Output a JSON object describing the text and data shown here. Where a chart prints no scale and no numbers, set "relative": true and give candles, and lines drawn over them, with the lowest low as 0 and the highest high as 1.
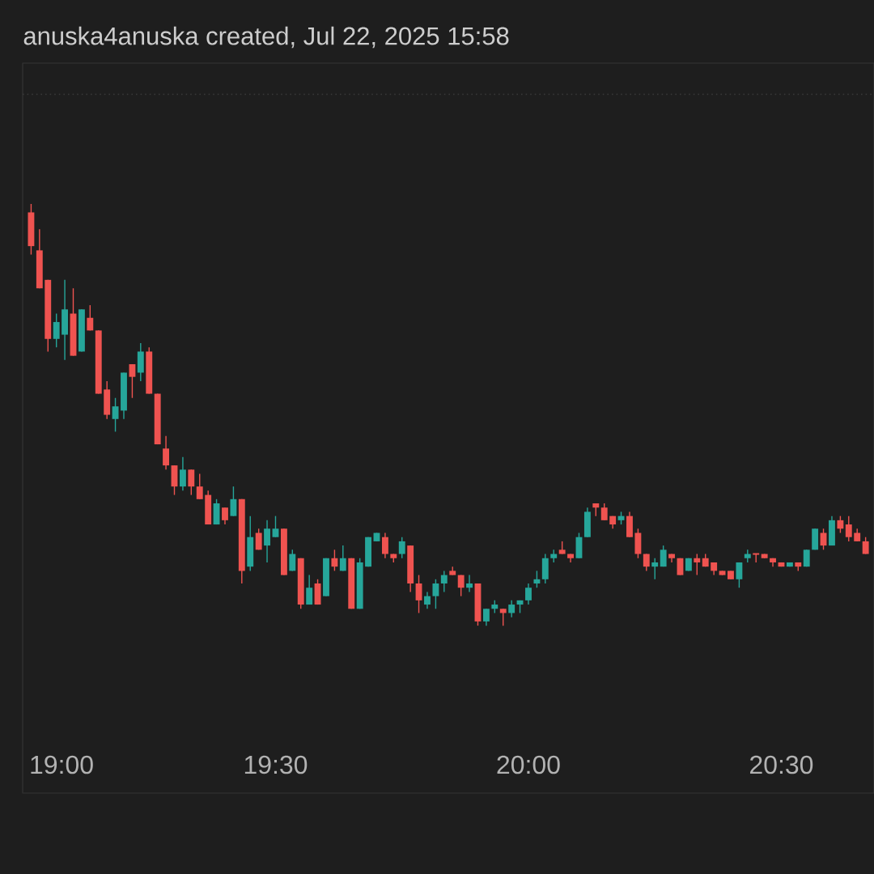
{
  "chart_data": {
    "type": "candlestick",
    "title": "anuska4anuska created, Jul 22, 2025 15:58",
    "relative": true,
    "x": [
      19.0167,
      19.0333,
      19.05,
      19.0667,
      19.0833,
      19.1,
      19.1167,
      19.1333,
      19.15,
      19.1667,
      19.1833,
      19.2,
      19.2167,
      19.2333,
      19.25,
      19.2667,
      19.2833,
      19.3,
      19.3167,
      19.3333,
      19.35,
      19.3667,
      19.3833,
      19.4,
      19.4167,
      19.4333,
      19.45,
      19.4667,
      19.4833,
      19.5,
      19.5167,
      19.5333,
      19.55,
      19.5667,
      19.5833,
      19.6,
      19.6167,
      19.6333,
      19.65,
      19.6667,
      19.6833,
      19.7,
      19.7167,
      19.7333,
      19.75,
      19.7667,
      19.7833,
      19.8,
      19.8167,
      19.8333,
      19.85,
      19.8667,
      19.8833,
      19.9,
      19.9167,
      19.9333,
      19.95,
      19.9667,
      19.9833,
      20.0,
      20.0167,
      20.0333,
      20.05,
      20.0667,
      20.0833,
      20.1,
      20.1167,
      20.1333,
      20.15,
      20.1667,
      20.1833,
      20.2,
      20.2167,
      20.2333,
      20.25,
      20.2667,
      20.2833,
      20.3,
      20.3167,
      20.3333,
      20.35,
      20.3667,
      20.3833,
      20.4,
      20.4167,
      20.4333,
      20.45,
      20.4667,
      20.4833,
      20.5,
      20.5167,
      20.5333,
      20.55,
      20.5667,
      20.5833,
      20.6,
      20.6167,
      20.6333,
      20.65,
      20.6667
    ],
    "ohlc": [
      [
        0.98,
        1,
        0.88,
        0.9
      ],
      [
        0.89,
        0.94,
        0.8,
        0.8
      ],
      [
        0.82,
        0.82,
        0.65,
        0.68
      ],
      [
        0.68,
        0.74,
        0.66,
        0.72
      ],
      [
        0.69,
        0.82,
        0.63,
        0.75
      ],
      [
        0.74,
        0.8,
        0.64,
        0.64
      ],
      [
        0.65,
        0.75,
        0.65,
        0.75
      ],
      [
        0.73,
        0.76,
        0.7,
        0.7
      ],
      [
        0.7,
        0.7,
        0.55,
        0.55
      ],
      [
        0.56,
        0.58,
        0.49,
        0.5
      ],
      [
        0.49,
        0.54,
        0.46,
        0.52
      ],
      [
        0.51,
        0.6,
        0.49,
        0.6
      ],
      [
        0.62,
        0.62,
        0.54,
        0.59
      ],
      [
        0.6,
        0.67,
        0.58,
        0.65
      ],
      [
        0.65,
        0.66,
        0.55,
        0.55
      ],
      [
        0.55,
        0.55,
        0.43,
        0.43
      ],
      [
        0.42,
        0.45,
        0.37,
        0.38
      ],
      [
        0.38,
        0.38,
        0.31,
        0.33
      ],
      [
        0.33,
        0.4,
        0.32,
        0.37
      ],
      [
        0.37,
        0.37,
        0.31,
        0.33
      ],
      [
        0.33,
        0.36,
        0.3,
        0.3
      ],
      [
        0.31,
        0.32,
        0.24,
        0.24
      ],
      [
        0.24,
        0.3,
        0.24,
        0.29
      ],
      [
        0.28,
        0.28,
        0.24,
        0.25
      ],
      [
        0.26,
        0.33,
        0.26,
        0.3
      ],
      [
        0.3,
        0.3,
        0.1,
        0.13
      ],
      [
        0.14,
        0.26,
        0.13,
        0.21
      ],
      [
        0.22,
        0.23,
        0.18,
        0.18
      ],
      [
        0.19,
        0.25,
        0.15,
        0.23
      ],
      [
        0.21,
        0.26,
        0.21,
        0.23
      ],
      [
        0.23,
        0.23,
        0.12,
        0.12
      ],
      [
        0.13,
        0.18,
        0.13,
        0.17
      ],
      [
        0.16,
        0.16,
        0.04,
        0.05
      ],
      [
        0.05,
        0.12,
        0.05,
        0.09
      ],
      [
        0.1,
        0.11,
        0.05,
        0.05
      ],
      [
        0.07,
        0.16,
        0.07,
        0.16
      ],
      [
        0.16,
        0.18,
        0.13,
        0.14
      ],
      [
        0.13,
        0.19,
        0.13,
        0.16
      ],
      [
        0.16,
        0.16,
        0.04,
        0.04
      ],
      [
        0.04,
        0.16,
        0.04,
        0.15
      ],
      [
        0.14,
        0.21,
        0.14,
        0.21
      ],
      [
        0.2,
        0.22,
        0.2,
        0.22
      ],
      [
        0.21,
        0.22,
        0.16,
        0.17
      ],
      [
        0.17,
        0.17,
        0.15,
        0.16
      ],
      [
        0.17,
        0.21,
        0.16,
        0.2
      ],
      [
        0.19,
        0.19,
        0.08,
        0.1
      ],
      [
        0.1,
        0.12,
        0.03,
        0.06
      ],
      [
        0.05,
        0.08,
        0.04,
        0.07
      ],
      [
        0.07,
        0.11,
        0.04,
        0.1
      ],
      [
        0.1,
        0.13,
        0.08,
        0.12
      ],
      [
        0.13,
        0.14,
        0.12,
        0.12
      ],
      [
        0.12,
        0.12,
        0.07,
        0.09
      ],
      [
        0.09,
        0.12,
        0.08,
        0.1
      ],
      [
        0.1,
        0.1,
        0.0,
        0.01
      ],
      [
        0.01,
        0.04,
        0.0,
        0.04
      ],
      [
        0.04,
        0.06,
        0.03,
        0.05
      ],
      [
        0.04,
        0.04,
        0,
        0.03
      ],
      [
        0.03,
        0.06,
        0.02,
        0.05
      ],
      [
        0.05,
        0.06,
        0.03,
        0.06
      ],
      [
        0.06,
        0.1,
        0.05,
        0.09
      ],
      [
        0.1,
        0.13,
        0.09,
        0.11
      ],
      [
        0.11,
        0.17,
        0.1,
        0.16
      ],
      [
        0.16,
        0.18,
        0.15,
        0.17
      ],
      [
        0.18,
        0.2,
        0.17,
        0.17
      ],
      [
        0.17,
        0.17,
        0.15,
        0.16
      ],
      [
        0.16,
        0.22,
        0.16,
        0.21
      ],
      [
        0.21,
        0.28,
        0.21,
        0.27
      ],
      [
        0.29,
        0.29,
        0.26,
        0.28
      ],
      [
        0.28,
        0.29,
        0.25,
        0.25
      ],
      [
        0.26,
        0.26,
        0.23,
        0.24
      ],
      [
        0.25,
        0.27,
        0.24,
        0.26
      ],
      [
        0.26,
        0.27,
        0.21,
        0.21
      ],
      [
        0.22,
        0.23,
        0.16,
        0.17
      ],
      [
        0.17,
        0.17,
        0.13,
        0.14
      ],
      [
        0.14,
        0.16,
        0.11,
        0.15
      ],
      [
        0.14,
        0.19,
        0.14,
        0.18
      ],
      [
        0.17,
        0.17,
        0.15,
        0.16
      ],
      [
        0.16,
        0.16,
        0.12,
        0.12
      ],
      [
        0.13,
        0.16,
        0.13,
        0.16
      ],
      [
        0.16,
        0.17,
        0.12,
        0.15
      ],
      [
        0.16,
        0.17,
        0.14,
        0.14
      ],
      [
        0.15,
        0.15,
        0.12,
        0.13
      ],
      [
        0.13,
        0.13,
        0.12,
        0.12
      ],
      [
        0.13,
        0.13,
        0.11,
        0.11
      ],
      [
        0.11,
        0.15,
        0.09,
        0.15
      ],
      [
        0.16,
        0.18,
        0.15,
        0.17
      ],
      [
        0.17,
        0.17,
        0.15,
        0.17
      ],
      [
        0.17,
        0.17,
        0.16,
        0.16
      ],
      [
        0.16,
        0.16,
        0.14,
        0.15
      ],
      [
        0.15,
        0.15,
        0.14,
        0.14
      ],
      [
        0.14,
        0.15,
        0.14,
        0.15
      ],
      [
        0.15,
        0.15,
        0.13,
        0.14
      ],
      [
        0.14,
        0.18,
        0.14,
        0.18
      ],
      [
        0.18,
        0.23,
        0.18,
        0.23
      ],
      [
        0.22,
        0.23,
        0.18,
        0.19
      ],
      [
        0.19,
        0.26,
        0.19,
        0.25
      ],
      [
        0.25,
        0.26,
        0.22,
        0.23
      ],
      [
        0.24,
        0.26,
        0.2,
        0.21
      ],
      [
        0.22,
        0.23,
        0.2,
        0.2
      ],
      [
        0.2,
        0.21,
        0.17,
        0.17
      ]
    ],
    "colors": [
      "#ef5350",
      "#ef5350",
      "#ef5350",
      "#26a69a",
      "#26a69a",
      "#ef5350",
      "#26a69a",
      "#ef5350",
      "#ef5350",
      "#ef5350",
      "#26a69a",
      "#26a69a",
      "#ef5350",
      "#26a69a",
      "#ef5350",
      "#ef5350",
      "#ef5350",
      "#ef5350",
      "#26a69a",
      "#ef5350",
      "#ef5350",
      "#ef5350",
      "#26a69a",
      "#ef5350",
      "#26a69a",
      "#ef5350",
      "#26a69a",
      "#ef5350",
      "#26a69a",
      "#26a69a",
      "#ef5350",
      "#26a69a",
      "#ef5350",
      "#26a69a",
      "#ef5350",
      "#26a69a",
      "#ef5350",
      "#26a69a",
      "#ef5350",
      "#26a69a",
      "#26a69a",
      "#26a69a",
      "#ef5350",
      "#ef5350",
      "#26a69a",
      "#ef5350",
      "#ef5350",
      "#26a69a",
      "#26a69a",
      "#26a69a",
      "#ef5350",
      "#ef5350",
      "#26a69a",
      "#ef5350",
      "#26a69a",
      "#26a69a",
      "#ef5350",
      "#26a69a",
      "#26a69a",
      "#26a69a",
      "#26a69a",
      "#26a69a",
      "#26a69a",
      "#ef5350",
      "#ef5350",
      "#26a69a",
      "#26a69a",
      "#ef5350",
      "#ef5350",
      "#ef5350",
      "#26a69a",
      "#ef5350",
      "#ef5350",
      "#ef5350",
      "#26a69a",
      "#26a69a",
      "#ef5350",
      "#ef5350",
      "#26a69a",
      "#ef5350",
      "#ef5350",
      "#ef5350",
      "#ef5350",
      "#ef5350",
      "#26a69a",
      "#26a69a",
      "#ef5350",
      "#ef5350",
      "#ef5350",
      "#ef5350",
      "#26a69a",
      "#ef5350",
      "#26a69a",
      "#26a69a",
      "#ef5350",
      "#26a69a",
      "#ef5350",
      "#ef5350",
      "#ef5350",
      "#ef5350"
    ],
    "xlim": [
      19.0,
      20.6833
    ],
    "xticks": [
      {
        "value": 19,
        "label": "19:00"
      },
      {
        "value": 19.5,
        "label": "19:30"
      },
      {
        "value": 20,
        "label": "20:00"
      },
      {
        "value": 20.5,
        "label": "20:30"
      }
    ],
    "ref_lines": [
      {
        "axis": "y",
        "value": 1.26,
        "color": "#3a3a3a",
        "line_style": "dotted"
      }
    ]
  }
}
